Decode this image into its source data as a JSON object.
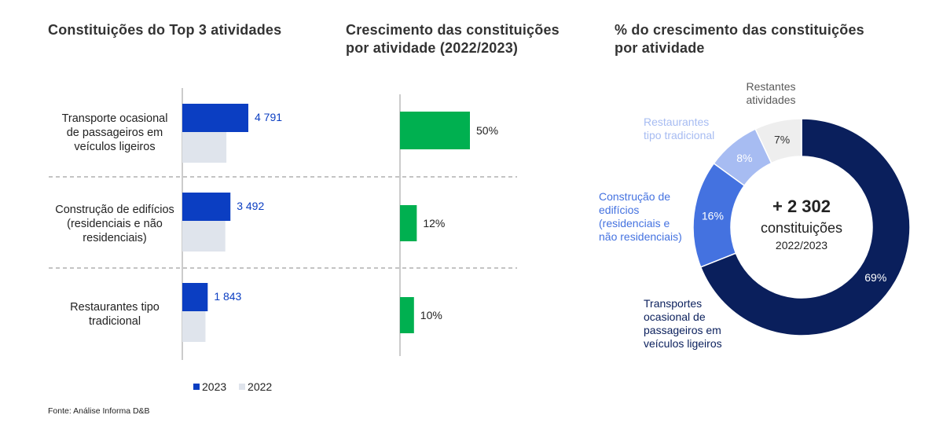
{
  "titles": {
    "left": "Constituições do Top 3 atividades",
    "middle_line1": "Crescimento das constituições",
    "middle_line2": "por atividade (2022/2023)",
    "right_line1": "% do crescimento das constituições",
    "right_line2": "por atividade"
  },
  "colors": {
    "y2023": "#0b3ec2",
    "y2022": "#dfe4ec",
    "growth": "#00b050",
    "donut_transport": "#0a1f5c",
    "donut_construction": "#4472e0",
    "donut_restaurants": "#a7bcf2",
    "donut_rest": "#eeeeee"
  },
  "chart_data": [
    {
      "type": "bar",
      "orientation": "horizontal",
      "title": "Constituições do Top 3 atividades",
      "categories": [
        [
          "Transporte ocasional",
          "de passageiros em",
          "veículos ligeiros"
        ],
        [
          "Construção de edifícios",
          "(residenciais e não",
          "residenciais)"
        ],
        [
          "Restaurantes tipo",
          "tradicional"
        ]
      ],
      "series": [
        {
          "name": "2023",
          "values": [
            4791,
            3492,
            1843
          ],
          "labels": [
            "4 791",
            "3 492",
            "1 843"
          ]
        },
        {
          "name": "2022",
          "values": [
            3200,
            3120,
            1680
          ]
        }
      ],
      "legend": [
        "2023",
        "2022"
      ]
    },
    {
      "type": "bar",
      "orientation": "horizontal",
      "title": "Crescimento das constituições por atividade (2022/2023)",
      "values": [
        50,
        12,
        10
      ],
      "labels": [
        "50%",
        "12%",
        "10%"
      ]
    },
    {
      "type": "pie",
      "variant": "donut",
      "title": "% do crescimento das constituições por atividade",
      "slices": [
        {
          "name": [
            "Transportes",
            "ocasional de",
            "passageiros em",
            "veículos ligeiros"
          ],
          "value": 69,
          "label": "69%"
        },
        {
          "name": [
            "Construção de",
            "edifícios",
            "(residenciais e",
            "não residenciais)"
          ],
          "value": 16,
          "label": "16%"
        },
        {
          "name": [
            "Restaurantes",
            "tipo tradicional"
          ],
          "value": 8,
          "label": "8%"
        },
        {
          "name": [
            "Restantes",
            "atividades"
          ],
          "value": 7,
          "label": "7%"
        }
      ],
      "center": {
        "value": "+ 2 302",
        "line2": "constituições",
        "line3": "2022/2023"
      }
    }
  ],
  "source": "Fonte: Análise Informa D&B"
}
